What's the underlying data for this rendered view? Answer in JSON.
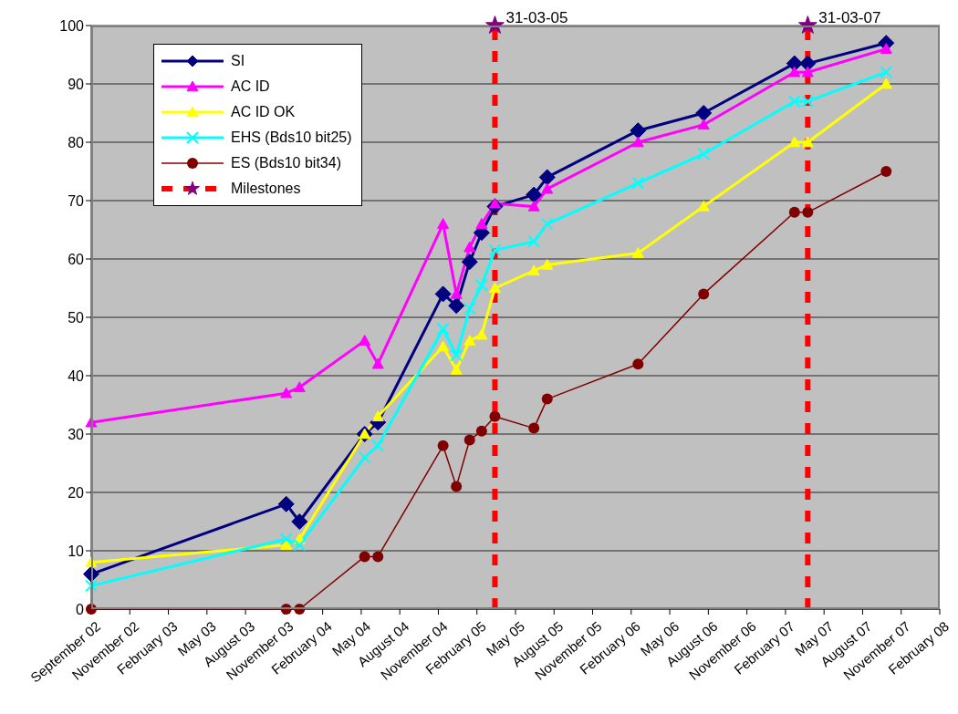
{
  "chart_data": {
    "type": "line",
    "x": [
      "2002-09-01",
      "2003-11-30",
      "2003-12-31",
      "2004-05-31",
      "2004-07-01",
      "2004-11-30",
      "2004-12-31",
      "2005-01-31",
      "2005-02-28",
      "2005-03-31",
      "2005-06-30",
      "2005-07-31",
      "2006-02-28",
      "2006-07-31",
      "2007-02-28",
      "2007-03-31",
      "2007-09-30"
    ],
    "series": [
      {
        "name": "SI",
        "color": "#000080",
        "marker": "diamond",
        "values": [
          6,
          18,
          15,
          30,
          32,
          54,
          52,
          59.5,
          64.5,
          69,
          71,
          74,
          82,
          85,
          93.5,
          93.5,
          97
        ]
      },
      {
        "name": "AC ID",
        "color": "#ff00ff",
        "marker": "triangle",
        "values": [
          32,
          37,
          38,
          46,
          42,
          66,
          54,
          62,
          66,
          69.5,
          69,
          72,
          80,
          83,
          92,
          92,
          96
        ]
      },
      {
        "name": "AC ID OK",
        "color": "#ffff00",
        "marker": "triangle",
        "values": [
          8,
          11,
          12,
          30,
          33,
          45,
          41,
          46,
          47,
          55,
          58,
          59,
          61,
          69,
          80,
          80,
          90
        ]
      },
      {
        "name": "EHS (Bds10 bit25)",
        "color": "#00ffff",
        "marker": "cross",
        "values": [
          4,
          12,
          11,
          26,
          28,
          48,
          43.5,
          51.5,
          55.5,
          61.5,
          63,
          66,
          73,
          78,
          87,
          87,
          92
        ]
      },
      {
        "name": "ES (Bds10 bit34)",
        "color": "#800000",
        "marker": "circle",
        "values": [
          0,
          0,
          0,
          9,
          9,
          28,
          21,
          29,
          30.5,
          33,
          31,
          36,
          42,
          54,
          68,
          68,
          75
        ]
      },
      {
        "name": "Milestones",
        "type": "scatter",
        "color": "#800080",
        "marker": "star",
        "x": [
          "2005-03-31",
          "2007-03-31"
        ],
        "values": [
          100,
          100
        ],
        "value_labels": [
          "31-03-05",
          "31-03-07"
        ]
      }
    ],
    "ref_lines": [
      {
        "axis": "x",
        "value": "2005-03-31",
        "color": "#ff0000",
        "line_style": "dashed"
      },
      {
        "axis": "x",
        "value": "2007-03-31",
        "color": "#ff0000",
        "line_style": "dashed"
      }
    ],
    "xlim": [
      "2002-09-01",
      "2008-02-02"
    ],
    "xticks": [
      {
        "value": "2002-09-01",
        "label": "September 02"
      },
      {
        "value": "2002-11-30",
        "label": "November 02"
      },
      {
        "value": "2003-02-28",
        "label": "February 03"
      },
      {
        "value": "2003-05-29",
        "label": "May 03"
      },
      {
        "value": "2003-08-27",
        "label": "August 03"
      },
      {
        "value": "2003-11-25",
        "label": "November 03"
      },
      {
        "value": "2004-02-23",
        "label": "February 04"
      },
      {
        "value": "2004-05-23",
        "label": "May 04"
      },
      {
        "value": "2004-08-21",
        "label": "August 04"
      },
      {
        "value": "2004-11-19",
        "label": "November 04"
      },
      {
        "value": "2005-02-17",
        "label": "February 05"
      },
      {
        "value": "2005-05-18",
        "label": "May 05"
      },
      {
        "value": "2005-08-16",
        "label": "August 05"
      },
      {
        "value": "2005-11-14",
        "label": "November 05"
      },
      {
        "value": "2006-02-12",
        "label": "February 06"
      },
      {
        "value": "2006-05-13",
        "label": "May 06"
      },
      {
        "value": "2006-08-11",
        "label": "August 06"
      },
      {
        "value": "2006-11-09",
        "label": "November 06"
      },
      {
        "value": "2007-02-07",
        "label": "February 07"
      },
      {
        "value": "2007-05-08",
        "label": "May 07"
      },
      {
        "value": "2007-08-06",
        "label": "August 07"
      },
      {
        "value": "2007-11-04",
        "label": "November 07"
      },
      {
        "value": "2008-02-02",
        "label": "February 08"
      }
    ],
    "ylim": [
      0,
      100
    ],
    "yticks": [
      0,
      10,
      20,
      30,
      40,
      50,
      60,
      70,
      80,
      90,
      100
    ],
    "grid": "y",
    "legend": "top left",
    "line_style": "solid"
  }
}
